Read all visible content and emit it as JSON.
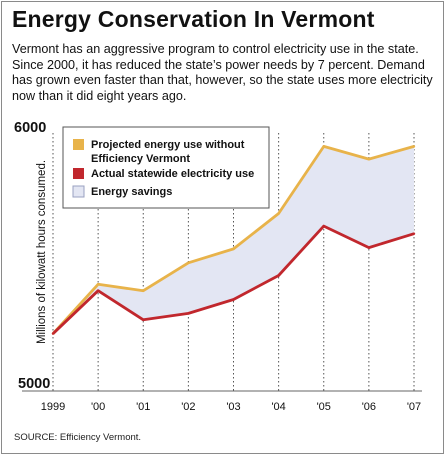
{
  "title": "Energy Conservation In Vermont",
  "subtitle": "Vermont has an aggressive program to control electricity use in the state. Since 2000, it has reduced the state’s power needs by 7 percent. Demand has grown even faster than that, however, so the state uses more electricity now than it did eight years ago.",
  "source": "SOURCE: Efficiency Vermont.",
  "colors": {
    "projected": "#e8b34a",
    "actual": "#c1272d",
    "savings_fill": "#e3e6f3",
    "savings_border": "#9aa0c0",
    "grid": "#555555",
    "text": "#111111"
  },
  "chart_data": {
    "type": "line",
    "title": "",
    "xlabel": "",
    "ylabel": "Millions of kilowatt hours consumed.",
    "categories": [
      "1999",
      "'00",
      "'01",
      "'02",
      "'03",
      "'04",
      "'05",
      "'06",
      "'07"
    ],
    "ylim": [
      5000,
      6000
    ],
    "yticks": [
      "6000",
      "5000"
    ],
    "grid": "vertical dotted",
    "legend_position": "top-left",
    "series": [
      {
        "name": "Projected energy use without Efficiency Vermont",
        "key": "projected",
        "values": [
          5195,
          5390,
          5365,
          5475,
          5530,
          5670,
          5935,
          5885,
          5935
        ]
      },
      {
        "name": "Actual statewide electricity use",
        "key": "actual",
        "values": [
          5195,
          5365,
          5250,
          5275,
          5330,
          5425,
          5620,
          5535,
          5590
        ]
      }
    ],
    "area": {
      "name": "Energy savings",
      "between": [
        "projected",
        "actual"
      ]
    }
  }
}
